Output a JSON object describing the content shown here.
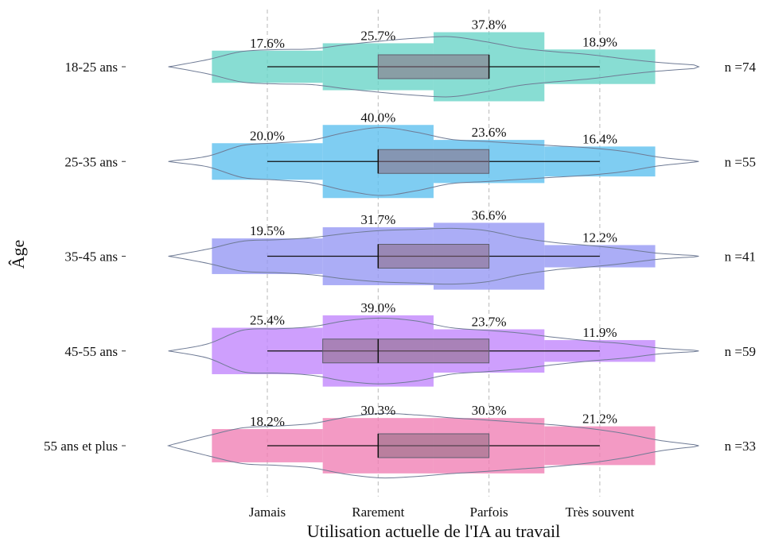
{
  "chart_data": {
    "type": "bar",
    "xlabel": "Utilisation actuelle de l'IA au travail",
    "ylabel": "Âge",
    "categories": [
      "Jamais",
      "Rarement",
      "Parfois",
      "Très souvent"
    ],
    "grid": "vertical dashed at categories",
    "series": [
      {
        "name": "18-25 ans",
        "color": "#66D4C6",
        "n_label": "n =74",
        "values": [
          17.6,
          25.7,
          37.8,
          18.9
        ],
        "labels": [
          "17.6%",
          "25.7%",
          "37.8%",
          "18.9%"
        ],
        "box": {
          "q1": 2,
          "median": 3,
          "q3": 3
        },
        "violin": [
          0.02,
          0.2,
          0.43,
          0.48,
          0.5,
          0.62,
          0.72,
          0.8,
          0.84,
          0.7,
          0.52,
          0.42,
          0.34,
          0.22,
          0.12,
          0.05
        ]
      },
      {
        "name": "25-35 ans",
        "color": "#5BBFEE",
        "n_label": "n =55",
        "values": [
          20.0,
          40.0,
          23.6,
          16.4
        ],
        "labels": [
          "20.0%",
          "40.0%",
          "23.6%",
          "16.4%"
        ],
        "box": {
          "q1": 2,
          "median": 2,
          "q3": 3
        },
        "violin": [
          0.02,
          0.15,
          0.45,
          0.52,
          0.6,
          0.82,
          0.95,
          0.82,
          0.62,
          0.56,
          0.5,
          0.44,
          0.38,
          0.28,
          0.12,
          0.02
        ]
      },
      {
        "name": "35-45 ans",
        "color": "#9496F4",
        "n_label": "n =41",
        "values": [
          19.5,
          31.7,
          36.6,
          12.2
        ],
        "labels": [
          "19.5%",
          "31.7%",
          "36.6%",
          "12.2%"
        ],
        "box": {
          "q1": 2,
          "median": 2,
          "q3": 3
        },
        "violin": [
          0.02,
          0.2,
          0.42,
          0.46,
          0.52,
          0.64,
          0.72,
          0.75,
          0.78,
          0.72,
          0.52,
          0.38,
          0.3,
          0.2,
          0.08,
          0.02
        ]
      },
      {
        "name": "45-55 ans",
        "color": "#C084FC",
        "n_label": "n =59",
        "values": [
          25.4,
          39.0,
          23.7,
          11.9
        ],
        "labels": [
          "25.4%",
          "39.0%",
          "23.7%",
          "11.9%"
        ],
        "box": {
          "q1": 1.5,
          "median": 2,
          "q3": 3
        },
        "violin": [
          0.02,
          0.2,
          0.58,
          0.62,
          0.68,
          0.85,
          0.92,
          0.84,
          0.65,
          0.58,
          0.5,
          0.38,
          0.28,
          0.2,
          0.08,
          0.02
        ]
      },
      {
        "name": "55 ans et plus",
        "color": "#F07EB3",
        "n_label": "n =33",
        "values": [
          18.2,
          30.3,
          30.3,
          21.2
        ],
        "labels": [
          "18.2%",
          "30.3%",
          "30.3%",
          "21.2%"
        ],
        "box": {
          "q1": 2,
          "median": 2,
          "q3": 3
        },
        "violin": [
          0.04,
          0.28,
          0.5,
          0.55,
          0.62,
          0.8,
          0.9,
          0.86,
          0.78,
          0.72,
          0.65,
          0.58,
          0.48,
          0.34,
          0.15,
          0.03
        ]
      }
    ]
  }
}
